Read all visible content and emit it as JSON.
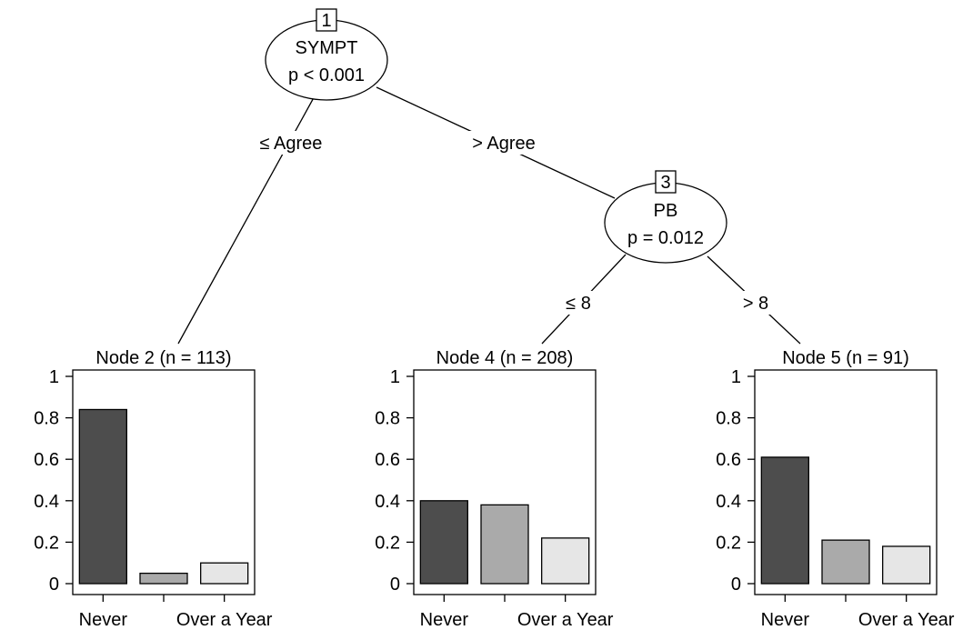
{
  "tree": {
    "inner_nodes": [
      {
        "id": "1",
        "variable": "SYMPT",
        "pvalue": "p < 0.001"
      },
      {
        "id": "3",
        "variable": "PB",
        "pvalue": "p = 0.012"
      }
    ],
    "edges": [
      {
        "label": "≤ Agree"
      },
      {
        "label": "> Agree"
      },
      {
        "label": "≤ 8"
      },
      {
        "label": "> 8"
      }
    ]
  },
  "colors": {
    "never": "#4d4d4d",
    "middle": "#aaaaaa",
    "over_a_year": "#e6e6e6"
  },
  "chart_data": [
    {
      "type": "bar",
      "title": "Node 2 (n = 113)",
      "categories": [
        "Never",
        "",
        "Over a Year"
      ],
      "values": [
        0.84,
        0.05,
        0.1
      ],
      "ylim": [
        0,
        1
      ],
      "yticks": [
        "0",
        "0.2",
        "0.4",
        "0.6",
        "0.8",
        "1"
      ]
    },
    {
      "type": "bar",
      "title": "Node 4 (n = 208)",
      "categories": [
        "Never",
        "",
        "Over a Year"
      ],
      "values": [
        0.4,
        0.38,
        0.22
      ],
      "ylim": [
        0,
        1
      ],
      "yticks": [
        "0",
        "0.2",
        "0.4",
        "0.6",
        "0.8",
        "1"
      ]
    },
    {
      "type": "bar",
      "title": "Node 5 (n = 91)",
      "categories": [
        "Never",
        "",
        "Over a Year"
      ],
      "values": [
        0.61,
        0.21,
        0.18
      ],
      "ylim": [
        0,
        1
      ],
      "yticks": [
        "0",
        "0.2",
        "0.4",
        "0.6",
        "0.8",
        "1"
      ]
    }
  ]
}
